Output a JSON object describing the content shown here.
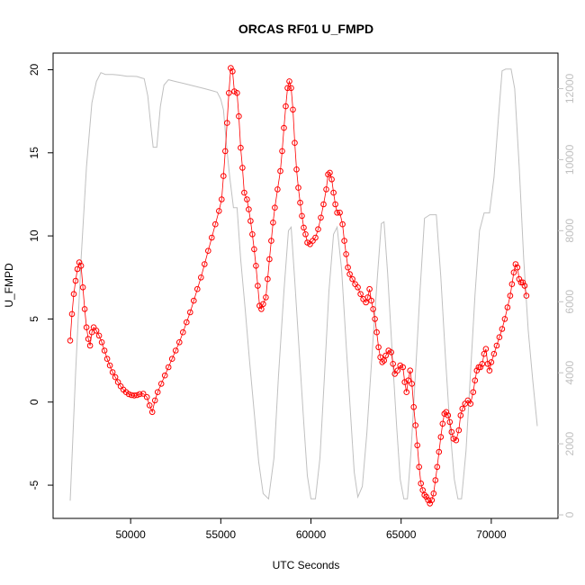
{
  "chart_data": {
    "type": "scatter",
    "title": "ORCAS RF01 U_FMPD",
    "xlabel": "UTC Seconds",
    "ylabel": "U_FMPD",
    "xlim": [
      45700,
      73700
    ],
    "ylim": [
      -7.0,
      21.0
    ],
    "x_ticks": [
      50000,
      55000,
      60000,
      65000,
      70000
    ],
    "y_ticks": [
      -5,
      0,
      5,
      10,
      15,
      20
    ],
    "y2_ticks": [
      0,
      2000,
      4000,
      6000,
      8000,
      10000,
      12000
    ],
    "y2lim": [
      -100,
      13000
    ],
    "grid": false,
    "series": [
      {
        "style": "points-and-lines",
        "color": "#ff0000",
        "points": [
          [
            46650,
            3.7
          ],
          [
            46750,
            5.3
          ],
          [
            46850,
            6.5
          ],
          [
            46950,
            7.3
          ],
          [
            47050,
            8.0
          ],
          [
            47150,
            8.4
          ],
          [
            47250,
            8.2
          ],
          [
            47350,
            6.9
          ],
          [
            47450,
            5.6
          ],
          [
            47550,
            4.5
          ],
          [
            47650,
            3.8
          ],
          [
            47750,
            3.4
          ],
          [
            47850,
            4.2
          ],
          [
            47950,
            4.5
          ],
          [
            48100,
            4.3
          ],
          [
            48250,
            4.0
          ],
          [
            48400,
            3.6
          ],
          [
            48550,
            3.1
          ],
          [
            48700,
            2.6
          ],
          [
            48850,
            2.2
          ],
          [
            49000,
            1.8
          ],
          [
            49150,
            1.5
          ],
          [
            49300,
            1.2
          ],
          [
            49450,
            0.95
          ],
          [
            49600,
            0.75
          ],
          [
            49750,
            0.6
          ],
          [
            49900,
            0.48
          ],
          [
            50050,
            0.42
          ],
          [
            50200,
            0.4
          ],
          [
            50350,
            0.42
          ],
          [
            50500,
            0.48
          ],
          [
            50700,
            0.5
          ],
          [
            50900,
            0.3
          ],
          [
            51050,
            -0.2
          ],
          [
            51200,
            -0.6
          ],
          [
            51350,
            0.1
          ],
          [
            51500,
            0.6
          ],
          [
            51700,
            1.1
          ],
          [
            51900,
            1.6
          ],
          [
            52100,
            2.1
          ],
          [
            52300,
            2.6
          ],
          [
            52500,
            3.1
          ],
          [
            52700,
            3.6
          ],
          [
            52900,
            4.2
          ],
          [
            53100,
            4.8
          ],
          [
            53300,
            5.4
          ],
          [
            53500,
            6.1
          ],
          [
            53700,
            6.8
          ],
          [
            53900,
            7.5
          ],
          [
            54100,
            8.3
          ],
          [
            54300,
            9.1
          ],
          [
            54500,
            9.9
          ],
          [
            54700,
            10.7
          ],
          [
            54900,
            11.5
          ],
          [
            55050,
            12.2
          ],
          [
            55150,
            13.6
          ],
          [
            55250,
            15.1
          ],
          [
            55350,
            16.8
          ],
          [
            55450,
            18.6
          ],
          [
            55550,
            20.1
          ],
          [
            55650,
            19.9
          ],
          [
            55750,
            18.7
          ],
          [
            55900,
            18.6
          ],
          [
            56000,
            17.2
          ],
          [
            56100,
            15.3
          ],
          [
            56200,
            14.1
          ],
          [
            56300,
            12.6
          ],
          [
            56450,
            12.2
          ],
          [
            56550,
            11.6
          ],
          [
            56650,
            10.9
          ],
          [
            56750,
            10.1
          ],
          [
            56850,
            9.2
          ],
          [
            56950,
            8.2
          ],
          [
            57050,
            7.0
          ],
          [
            57150,
            5.8
          ],
          [
            57250,
            5.6
          ],
          [
            57350,
            5.9
          ],
          [
            57500,
            6.3
          ],
          [
            57600,
            7.4
          ],
          [
            57700,
            8.6
          ],
          [
            57800,
            9.7
          ],
          [
            57900,
            10.8
          ],
          [
            58000,
            11.7
          ],
          [
            58150,
            12.8
          ],
          [
            58300,
            13.9
          ],
          [
            58400,
            15.1
          ],
          [
            58500,
            16.5
          ],
          [
            58600,
            17.8
          ],
          [
            58700,
            18.9
          ],
          [
            58800,
            19.3
          ],
          [
            58900,
            18.9
          ],
          [
            59000,
            17.6
          ],
          [
            59100,
            15.6
          ],
          [
            59200,
            14.0
          ],
          [
            59300,
            12.9
          ],
          [
            59400,
            12.0
          ],
          [
            59500,
            11.2
          ],
          [
            59600,
            10.5
          ],
          [
            59700,
            10.1
          ],
          [
            59800,
            9.6
          ],
          [
            59950,
            9.5
          ],
          [
            60100,
            9.7
          ],
          [
            60250,
            9.9
          ],
          [
            60400,
            10.4
          ],
          [
            60550,
            11.1
          ],
          [
            60700,
            11.9
          ],
          [
            60850,
            12.8
          ],
          [
            60950,
            13.7
          ],
          [
            61050,
            13.8
          ],
          [
            61150,
            13.4
          ],
          [
            61250,
            12.6
          ],
          [
            61350,
            11.9
          ],
          [
            61450,
            11.4
          ],
          [
            61600,
            11.4
          ],
          [
            61750,
            10.7
          ],
          [
            61850,
            9.7
          ],
          [
            61950,
            8.9
          ],
          [
            62050,
            8.1
          ],
          [
            62150,
            7.7
          ],
          [
            62300,
            7.4
          ],
          [
            62450,
            7.1
          ],
          [
            62600,
            6.9
          ],
          [
            62750,
            6.5
          ],
          [
            62900,
            6.2
          ],
          [
            63050,
            6.0
          ],
          [
            63150,
            6.3
          ],
          [
            63250,
            6.8
          ],
          [
            63350,
            6.1
          ],
          [
            63450,
            5.6
          ],
          [
            63550,
            5.0
          ],
          [
            63650,
            4.2
          ],
          [
            63750,
            3.3
          ],
          [
            63850,
            2.7
          ],
          [
            63950,
            2.4
          ],
          [
            64050,
            2.5
          ],
          [
            64150,
            2.8
          ],
          [
            64300,
            3.1
          ],
          [
            64450,
            3.0
          ],
          [
            64550,
            2.3
          ],
          [
            64650,
            1.7
          ],
          [
            64800,
            1.9
          ],
          [
            64950,
            2.2
          ],
          [
            65100,
            2.1
          ],
          [
            65200,
            1.2
          ],
          [
            65300,
            0.6
          ],
          [
            65400,
            1.3
          ],
          [
            65500,
            1.9
          ],
          [
            65600,
            1.1
          ],
          [
            65700,
            -0.3
          ],
          [
            65800,
            -1.4
          ],
          [
            65900,
            -2.6
          ],
          [
            66000,
            -3.9
          ],
          [
            66100,
            -4.9
          ],
          [
            66200,
            -5.3
          ],
          [
            66300,
            -5.6
          ],
          [
            66400,
            -5.7
          ],
          [
            66500,
            -5.9
          ],
          [
            66600,
            -6.1
          ],
          [
            66700,
            -5.9
          ],
          [
            66800,
            -5.5
          ],
          [
            66900,
            -4.7
          ],
          [
            67000,
            -3.9
          ],
          [
            67100,
            -3.0
          ],
          [
            67200,
            -2.1
          ],
          [
            67300,
            -1.3
          ],
          [
            67400,
            -0.7
          ],
          [
            67500,
            -0.6
          ],
          [
            67600,
            -0.8
          ],
          [
            67700,
            -1.2
          ],
          [
            67800,
            -1.8
          ],
          [
            67900,
            -2.2
          ],
          [
            68050,
            -2.3
          ],
          [
            68200,
            -1.7
          ],
          [
            68300,
            -0.8
          ],
          [
            68400,
            -0.4
          ],
          [
            68550,
            -0.1
          ],
          [
            68700,
            0.1
          ],
          [
            68850,
            -0.1
          ],
          [
            69000,
            0.6
          ],
          [
            69100,
            1.3
          ],
          [
            69200,
            1.9
          ],
          [
            69300,
            2.1
          ],
          [
            69400,
            2.1
          ],
          [
            69500,
            2.3
          ],
          [
            69600,
            2.9
          ],
          [
            69700,
            3.2
          ],
          [
            69800,
            2.3
          ],
          [
            69900,
            1.9
          ],
          [
            70000,
            2.4
          ],
          [
            70150,
            2.9
          ],
          [
            70300,
            3.4
          ],
          [
            70450,
            3.9
          ],
          [
            70600,
            4.4
          ],
          [
            70750,
            5.0
          ],
          [
            70900,
            5.7
          ],
          [
            71050,
            6.4
          ],
          [
            71150,
            7.1
          ],
          [
            71250,
            7.8
          ],
          [
            71350,
            8.3
          ],
          [
            71450,
            8.1
          ],
          [
            71550,
            7.4
          ],
          [
            71650,
            7.2
          ],
          [
            71750,
            7.2
          ],
          [
            71850,
            7.0
          ],
          [
            71950,
            6.4
          ]
        ]
      },
      {
        "style": "line",
        "axis": "right",
        "color": "#c0c0c0",
        "points": [
          [
            46650,
            400
          ],
          [
            46950,
            4000
          ],
          [
            47250,
            7200
          ],
          [
            47550,
            9800
          ],
          [
            47850,
            11600
          ],
          [
            48100,
            12200
          ],
          [
            48350,
            12450
          ],
          [
            48600,
            12400
          ],
          [
            49000,
            12400
          ],
          [
            49400,
            12380
          ],
          [
            49800,
            12350
          ],
          [
            50100,
            12350
          ],
          [
            50350,
            12340
          ],
          [
            50600,
            12300
          ],
          [
            50750,
            12280
          ],
          [
            50950,
            11800
          ],
          [
            51150,
            10800
          ],
          [
            51250,
            10350
          ],
          [
            51450,
            10350
          ],
          [
            51650,
            11500
          ],
          [
            51850,
            12100
          ],
          [
            52100,
            12250
          ],
          [
            52500,
            12200
          ],
          [
            52900,
            12150
          ],
          [
            53300,
            12100
          ],
          [
            53700,
            12050
          ],
          [
            54100,
            12000
          ],
          [
            54450,
            11950
          ],
          [
            54800,
            11900
          ],
          [
            55000,
            11700
          ],
          [
            55150,
            11400
          ],
          [
            55300,
            10500
          ],
          [
            55500,
            9500
          ],
          [
            55700,
            8650
          ],
          [
            55900,
            8650
          ],
          [
            56100,
            7200
          ],
          [
            56350,
            5800
          ],
          [
            56600,
            4300
          ],
          [
            56850,
            2900
          ],
          [
            57100,
            1500
          ],
          [
            57350,
            600
          ],
          [
            57650,
            450
          ],
          [
            57950,
            1600
          ],
          [
            58200,
            3900
          ],
          [
            58500,
            6300
          ],
          [
            58750,
            8000
          ],
          [
            58900,
            8100
          ],
          [
            59100,
            6600
          ],
          [
            59350,
            4600
          ],
          [
            59600,
            2600
          ],
          [
            59800,
            1100
          ],
          [
            60000,
            450
          ],
          [
            60250,
            450
          ],
          [
            60500,
            1600
          ],
          [
            60750,
            3900
          ],
          [
            61000,
            6300
          ],
          [
            61250,
            7900
          ],
          [
            61450,
            8100
          ],
          [
            61700,
            6900
          ],
          [
            61950,
            4800
          ],
          [
            62200,
            2800
          ],
          [
            62400,
            1200
          ],
          [
            62600,
            500
          ],
          [
            62850,
            800
          ],
          [
            63100,
            2300
          ],
          [
            63400,
            4600
          ],
          [
            63700,
            6800
          ],
          [
            63900,
            8200
          ],
          [
            64050,
            8250
          ],
          [
            64250,
            6800
          ],
          [
            64500,
            4600
          ],
          [
            64750,
            2500
          ],
          [
            64950,
            1000
          ],
          [
            65150,
            450
          ],
          [
            65350,
            450
          ],
          [
            65550,
            1800
          ],
          [
            65800,
            4000
          ],
          [
            66050,
            6300
          ],
          [
            66300,
            8350
          ],
          [
            66600,
            8450
          ],
          [
            66950,
            8450
          ],
          [
            67200,
            6700
          ],
          [
            67450,
            4500
          ],
          [
            67700,
            2500
          ],
          [
            67950,
            1000
          ],
          [
            68150,
            450
          ],
          [
            68350,
            450
          ],
          [
            68600,
            1800
          ],
          [
            68850,
            4000
          ],
          [
            69100,
            6200
          ],
          [
            69350,
            8000
          ],
          [
            69600,
            8500
          ],
          [
            69900,
            8500
          ],
          [
            70150,
            9500
          ],
          [
            70400,
            11200
          ],
          [
            70600,
            12500
          ],
          [
            70800,
            12550
          ],
          [
            71100,
            12550
          ],
          [
            71300,
            12000
          ],
          [
            71550,
            9800
          ],
          [
            71800,
            7200
          ],
          [
            72050,
            5200
          ],
          [
            72300,
            3800
          ],
          [
            72550,
            2500
          ]
        ]
      }
    ]
  }
}
